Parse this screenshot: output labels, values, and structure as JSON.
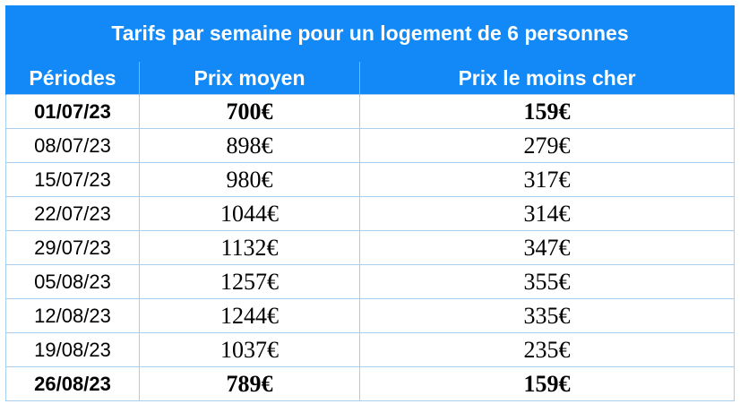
{
  "table": {
    "title": "Tarifs par semaine pour un logement de 6 personnes",
    "headers": [
      "Périodes",
      "Prix moyen",
      "Prix le moins cher"
    ],
    "rows": [
      {
        "period": "01/07/23",
        "avg": "700€",
        "min": "159€",
        "bold": true
      },
      {
        "period": "08/07/23",
        "avg": "898€",
        "min": "279€",
        "bold": false
      },
      {
        "period": "15/07/23",
        "avg": "980€",
        "min": "317€",
        "bold": false
      },
      {
        "period": "22/07/23",
        "avg": "1044€",
        "min": "314€",
        "bold": false
      },
      {
        "period": "29/07/23",
        "avg": "1132€",
        "min": "347€",
        "bold": false
      },
      {
        "period": "05/08/23",
        "avg": "1257€",
        "min": "355€",
        "bold": false
      },
      {
        "period": "12/08/23",
        "avg": "1244€",
        "min": "335€",
        "bold": false
      },
      {
        "period": "19/08/23",
        "avg": "1037€",
        "min": "235€",
        "bold": false
      },
      {
        "period": "26/08/23",
        "avg": "789€",
        "min": "159€",
        "bold": true
      }
    ]
  }
}
